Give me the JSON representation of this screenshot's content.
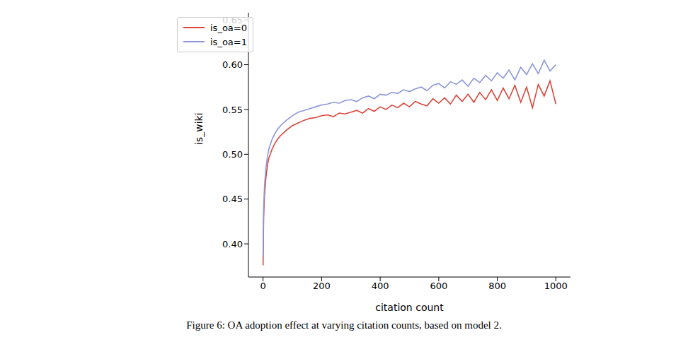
{
  "chart_data": {
    "type": "line",
    "caption": "Figure 6: OA adoption effect at varying citation counts, based on model 2.",
    "x_label": "citation count",
    "y_label": "is_wiki",
    "x": [
      0,
      2,
      5,
      10,
      15,
      20,
      30,
      40,
      50,
      60,
      80,
      100,
      120,
      140,
      160,
      180,
      200,
      220,
      240,
      260,
      280,
      300,
      320,
      340,
      360,
      380,
      400,
      420,
      440,
      460,
      480,
      500,
      520,
      540,
      560,
      580,
      600,
      620,
      640,
      660,
      680,
      700,
      720,
      740,
      760,
      780,
      800,
      820,
      840,
      860,
      880,
      900,
      920,
      940,
      960,
      980,
      1000
    ],
    "series": [
      {
        "name": "is_oa=0",
        "color": "#d9463b",
        "values": [
          0.376,
          0.43,
          0.455,
          0.475,
          0.488,
          0.496,
          0.505,
          0.512,
          0.517,
          0.521,
          0.527,
          0.532,
          0.535,
          0.538,
          0.54,
          0.541,
          0.543,
          0.544,
          0.542,
          0.546,
          0.545,
          0.547,
          0.549,
          0.546,
          0.551,
          0.548,
          0.553,
          0.55,
          0.555,
          0.552,
          0.557,
          0.553,
          0.559,
          0.556,
          0.554,
          0.562,
          0.557,
          0.563,
          0.556,
          0.566,
          0.559,
          0.567,
          0.558,
          0.569,
          0.561,
          0.572,
          0.56,
          0.574,
          0.562,
          0.577,
          0.558,
          0.575,
          0.552,
          0.578,
          0.565,
          0.582,
          0.556
        ]
      },
      {
        "name": "is_oa=1",
        "color": "#8c96d9",
        "values": [
          0.385,
          0.44,
          0.465,
          0.485,
          0.498,
          0.506,
          0.516,
          0.523,
          0.528,
          0.532,
          0.538,
          0.543,
          0.547,
          0.549,
          0.551,
          0.553,
          0.555,
          0.556,
          0.558,
          0.557,
          0.56,
          0.561,
          0.559,
          0.563,
          0.565,
          0.562,
          0.567,
          0.566,
          0.569,
          0.568,
          0.572,
          0.57,
          0.573,
          0.575,
          0.571,
          0.577,
          0.579,
          0.574,
          0.581,
          0.578,
          0.583,
          0.576,
          0.585,
          0.58,
          0.588,
          0.582,
          0.591,
          0.585,
          0.594,
          0.583,
          0.597,
          0.589,
          0.601,
          0.59,
          0.605,
          0.593,
          0.6
        ]
      }
    ],
    "xlim": [
      -50,
      1050
    ],
    "xticks": [
      0,
      200,
      400,
      600,
      800,
      1000
    ],
    "ylim": [
      0.363,
      0.658
    ],
    "yticks": [
      {
        "value": 0.4,
        "label": "0.40"
      },
      0.45,
      {
        "value": 0.5,
        "label": "0.50"
      },
      0.55,
      {
        "value": 0.6,
        "label": "0.60"
      },
      0.65
    ],
    "legend": "upper left",
    "grid": false
  }
}
